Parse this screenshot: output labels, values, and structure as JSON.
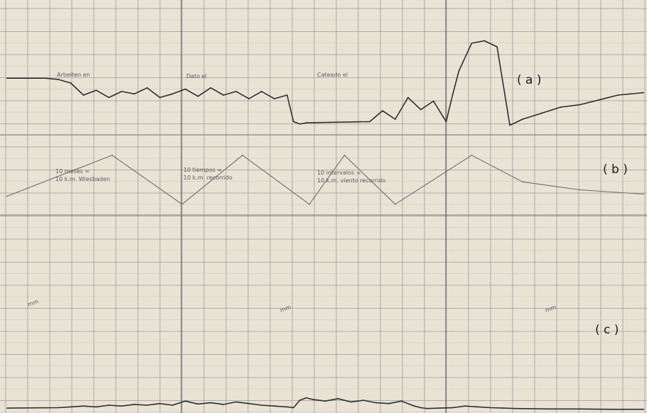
{
  "colors": {
    "paper": "#e9e3d6",
    "grid": "#8b8b8b",
    "grid_fine": "#b9b4a8",
    "trace": "#2e2e2e",
    "trace_light": "#6e6e6e",
    "text": "#1b1b1b"
  },
  "chart_data": [
    {
      "type": "line",
      "panel_label": "( a )",
      "annotations": [
        "Arbeiten en",
        "Dato el",
        "Cateado el"
      ],
      "title": "",
      "xlabel": "",
      "ylabel": "",
      "xlim": [
        0,
        100
      ],
      "ylim": [
        0,
        100
      ],
      "grid": true,
      "series": [
        {
          "x": [
            0,
            3,
            6,
            8,
            10,
            12,
            14,
            16,
            18,
            20,
            22,
            24,
            26,
            28,
            30,
            32,
            34,
            36,
            38,
            40,
            42,
            44,
            45,
            46,
            47,
            57,
            59,
            61,
            63,
            65,
            67,
            69,
            70,
            71,
            73,
            75,
            77,
            79,
            81,
            84,
            87,
            90,
            93,
            96,
            100
          ],
          "y": [
            44,
            44,
            44,
            43,
            40,
            30,
            34,
            28,
            33,
            31,
            36,
            28,
            31,
            35,
            29,
            36,
            30,
            33,
            27,
            33,
            27,
            30,
            8,
            6,
            7,
            8,
            17,
            10,
            28,
            18,
            25,
            8,
            30,
            50,
            73,
            75,
            70,
            5,
            10,
            15,
            20,
            22,
            26,
            30,
            32
          ]
        }
      ]
    },
    {
      "type": "line",
      "panel_label": "( b )",
      "annotations": [
        "10 meses =",
        "10 k.m. Wiesbaden",
        "10 tiempos =",
        "10 k.m. recorrido",
        "10 intervalos =",
        "10 k.m. viento recorrido"
      ],
      "title": "",
      "xlabel": "",
      "ylabel": "",
      "xlim": [
        0,
        100
      ],
      "ylim": [
        0,
        100
      ],
      "grid": true,
      "series": [
        {
          "x": [
            0,
            16.5,
            27.5,
            37,
            47.5,
            53,
            61,
            73,
            81,
            90,
            100
          ],
          "y": [
            18,
            95,
            3,
            95,
            3,
            95,
            3,
            95,
            45,
            30,
            22
          ]
        }
      ]
    },
    {
      "type": "line",
      "panel_label": "( c )",
      "annotations": [
        "mm",
        "mm",
        "mm"
      ],
      "title": "",
      "xlabel": "",
      "ylabel": "",
      "xlim": [
        0,
        100
      ],
      "ylim": [
        0,
        100
      ],
      "grid": true,
      "series": [
        {
          "x": [
            0,
            8,
            10,
            12,
            14,
            16,
            18,
            20,
            22,
            24,
            26,
            28,
            30,
            32,
            34,
            36,
            38,
            40,
            42,
            44,
            45,
            46,
            47,
            48,
            50,
            52,
            54,
            56,
            58,
            60,
            62,
            64,
            65,
            66,
            68,
            70,
            72,
            74,
            76,
            78,
            80,
            85,
            90,
            95,
            100
          ],
          "y": [
            5,
            6,
            8,
            10,
            8,
            12,
            10,
            14,
            12,
            16,
            12,
            22,
            15,
            18,
            14,
            20,
            16,
            12,
            10,
            8,
            6,
            24,
            30,
            26,
            22,
            28,
            20,
            24,
            18,
            16,
            22,
            10,
            6,
            4,
            5,
            6,
            10,
            8,
            6,
            5,
            4,
            3,
            3,
            2,
            2
          ]
        }
      ]
    }
  ]
}
